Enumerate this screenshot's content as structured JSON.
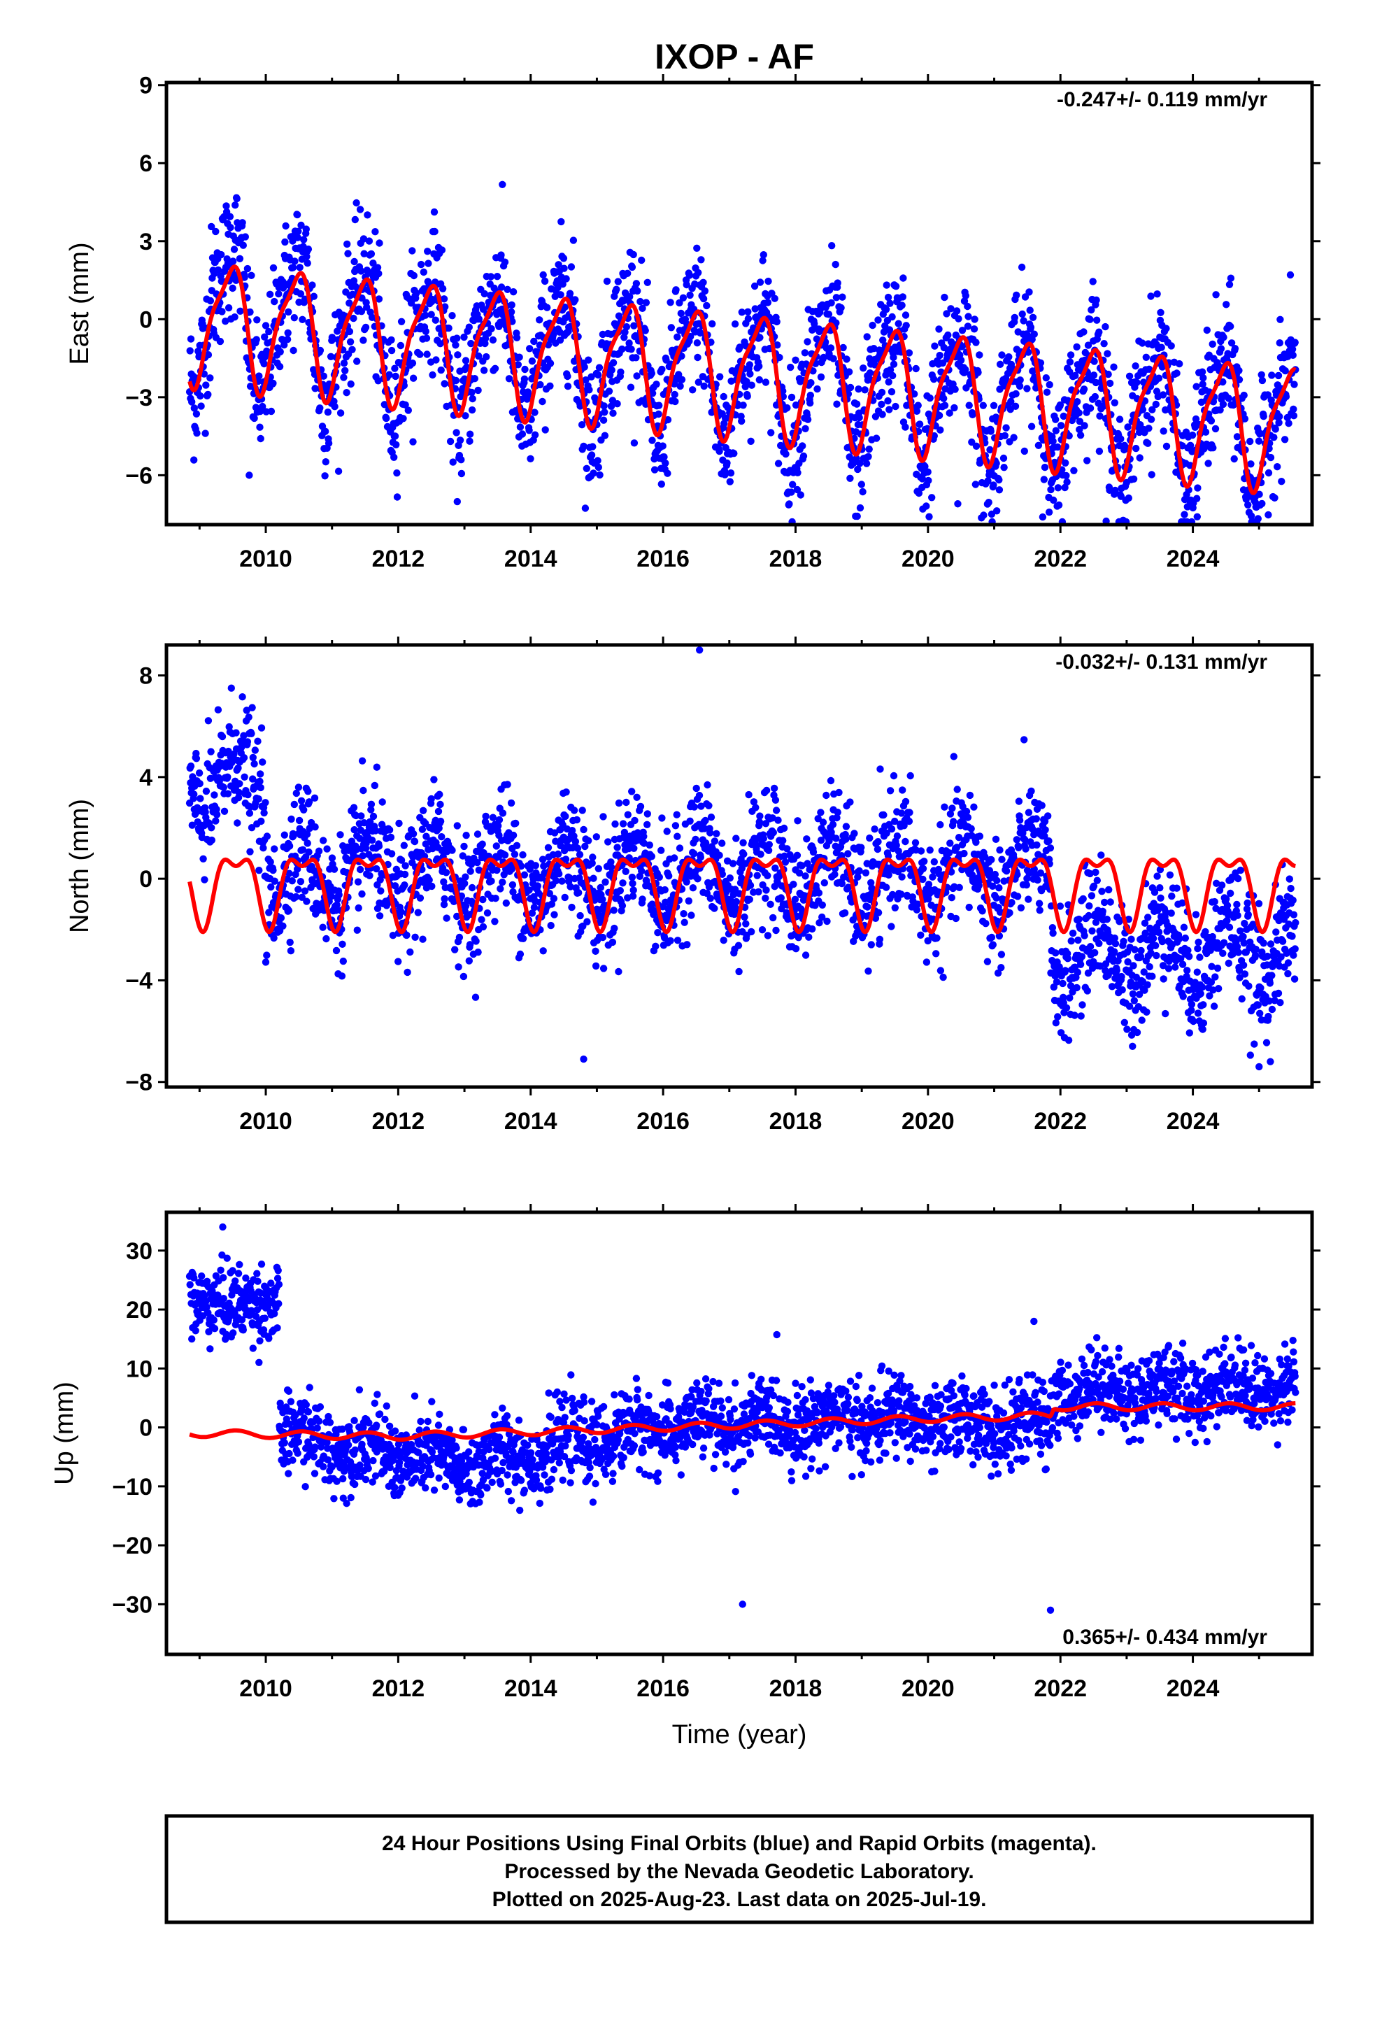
{
  "title": "IXOP - AF",
  "colors": {
    "final_orbits": "#0000ff",
    "model": "#ff0000",
    "frame": "#000000"
  },
  "chart_data": [
    {
      "type": "scatter",
      "panel": "east",
      "ylabel": "East (mm)",
      "xlabel": "",
      "xlim": [
        2008.5,
        2025.8
      ],
      "ylim": [
        -7.9,
        9.1
      ],
      "yticks": [
        9,
        6,
        3,
        0,
        -3,
        -6
      ],
      "ytick_labels": [
        "9",
        "6",
        "3",
        "0",
        "−3",
        "−6"
      ],
      "xticks": [
        2010,
        2012,
        2014,
        2016,
        2018,
        2020,
        2022,
        2024
      ],
      "xtick_labels": [
        "2010",
        "2012",
        "2014",
        "2016",
        "2018",
        "2020",
        "2022",
        "2024"
      ],
      "rate_text": "-0.247+/- 0.119 mm/yr",
      "data_range": [
        2008.85,
        2025.55
      ],
      "model_offset_at_start": 0.0,
      "trend_mm_per_yr": -0.247,
      "annual_amplitude": 3.0,
      "annual_peak_fraction": 0.45,
      "scatter_sd": 1.3,
      "outliers": [
        {
          "x": 2009.75,
          "y": -6.0
        },
        {
          "x": 2020.45,
          "y": -7.1
        },
        {
          "x": 2016.0,
          "y": -5.3
        }
      ],
      "series": [
        {
          "name": "24 Hour Positions",
          "kind": "points"
        },
        {
          "name": "model",
          "kind": "line"
        }
      ]
    },
    {
      "type": "scatter",
      "panel": "north",
      "ylabel": "North (mm)",
      "xlabel": "",
      "xlim": [
        2008.5,
        2025.8
      ],
      "ylim": [
        -8.2,
        9.2
      ],
      "yticks": [
        8,
        4,
        0,
        -4,
        -8
      ],
      "ytick_labels": [
        "8",
        "4",
        "0",
        "−4",
        "−8"
      ],
      "xticks": [
        2010,
        2012,
        2014,
        2016,
        2018,
        2020,
        2022,
        2024
      ],
      "xtick_labels": [
        "2010",
        "2012",
        "2014",
        "2016",
        "2018",
        "2020",
        "2022",
        "2024"
      ],
      "rate_text": "-0.032+/- 0.131 mm/yr",
      "data_range": [
        2008.85,
        2025.55
      ],
      "step_year": 2021.85,
      "level_before_step": 0.2,
      "level_after_step": -2.8,
      "annual_amplitude": 1.3,
      "semiannual_amplitude": 0.6,
      "scatter_sd": 1.2,
      "outliers": [
        {
          "x": 2016.55,
          "y": 9.0
        },
        {
          "x": 2014.8,
          "y": -7.1
        },
        {
          "x": 2025.0,
          "y": -7.4
        }
      ],
      "series": [
        {
          "name": "24 Hour Positions",
          "kind": "points"
        },
        {
          "name": "model",
          "kind": "line"
        }
      ]
    },
    {
      "type": "scatter",
      "panel": "up",
      "ylabel": "Up (mm)",
      "xlabel": "Time (year)",
      "xlim": [
        2008.5,
        2025.8
      ],
      "ylim": [
        -38.5,
        36.5
      ],
      "yticks": [
        30,
        20,
        10,
        0,
        -10,
        -20,
        -30
      ],
      "ytick_labels": [
        "30",
        "20",
        "10",
        "0",
        "−10",
        "−20",
        "−30"
      ],
      "xticks": [
        2010,
        2012,
        2014,
        2016,
        2018,
        2020,
        2022,
        2024
      ],
      "xtick_labels": [
        "2010",
        "2012",
        "2014",
        "2016",
        "2018",
        "2020",
        "2022",
        "2024"
      ],
      "rate_text": "0.365+/- 0.434 mm/yr",
      "data_range": [
        2008.85,
        2025.55
      ],
      "early_block": {
        "x_end": 2010.2,
        "level": 21.0,
        "sd": 3.2
      },
      "trend_points": [
        [
          2010.3,
          -1.5
        ],
        [
          2013.0,
          -6.5
        ],
        [
          2016.0,
          0.0
        ],
        [
          2019.0,
          1.5
        ],
        [
          2021.8,
          0.0
        ],
        [
          2021.9,
          6.0
        ],
        [
          2025.5,
          7.0
        ]
      ],
      "model_points": [
        [
          2008.85,
          -1.0
        ],
        [
          2012.0,
          -1.5
        ],
        [
          2016.0,
          0.0
        ],
        [
          2020.0,
          1.5
        ],
        [
          2021.85,
          2.0
        ],
        [
          2021.9,
          3.5
        ],
        [
          2025.5,
          3.5
        ]
      ],
      "scatter_sd": 3.3,
      "outliers": [
        {
          "x": 2017.2,
          "y": -30.0
        },
        {
          "x": 2021.85,
          "y": -31.0
        },
        {
          "x": 2009.35,
          "y": 34.0
        },
        {
          "x": 2021.6,
          "y": 18.0
        }
      ],
      "series": [
        {
          "name": "24 Hour Positions",
          "kind": "points"
        },
        {
          "name": "model",
          "kind": "line"
        }
      ]
    }
  ],
  "footer": {
    "line1": "24 Hour Positions Using Final Orbits (blue) and Rapid Orbits (magenta).",
    "line2": "Processed by the Nevada Geodetic Laboratory.",
    "line3": "Plotted on 2025-Aug-23. Last data on 2025-Jul-19."
  }
}
